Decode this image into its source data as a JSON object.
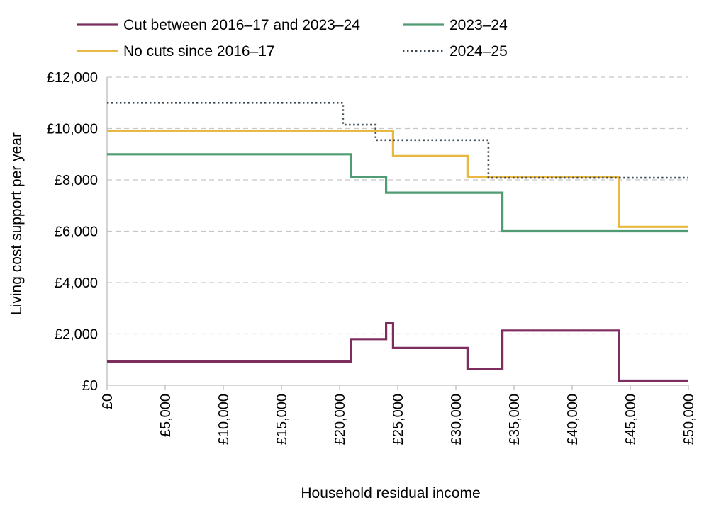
{
  "chart_data": {
    "type": "line",
    "step": true,
    "title": "",
    "xlabel": "Household residual income",
    "ylabel": "Living cost support per year",
    "xlim": [
      0,
      50000
    ],
    "ylim": [
      0,
      12000
    ],
    "x_ticks": [
      0,
      5000,
      10000,
      15000,
      20000,
      25000,
      30000,
      35000,
      40000,
      45000,
      50000
    ],
    "x_tick_labels": [
      "£0",
      "£5,000",
      "£10,000",
      "£15,000",
      "£20,000",
      "£25,000",
      "£30,000",
      "£35,000",
      "£40,000",
      "£45,000",
      "£50,000"
    ],
    "y_ticks": [
      0,
      2000,
      4000,
      6000,
      8000,
      10000,
      12000
    ],
    "y_tick_labels": [
      "£0",
      "£2,000",
      "£4,000",
      "£6,000",
      "£8,000",
      "£10,000",
      "£12,000"
    ],
    "grid": "horizontal dashed",
    "legend_position": "top",
    "series": [
      {
        "name": "Cut between 2016–17 and 2023–24",
        "color": "#7d2e5f",
        "style": "solid",
        "x": [
          0,
          21000,
          21000,
          24000,
          24000,
          24600,
          24600,
          31000,
          31000,
          34000,
          34000,
          44000,
          44000,
          50000
        ],
        "y": [
          920,
          920,
          1800,
          1800,
          2420,
          2420,
          1450,
          1450,
          630,
          630,
          2130,
          2130,
          180,
          180
        ]
      },
      {
        "name": "No cuts since 2016–17",
        "color": "#e8b840",
        "style": "solid",
        "x": [
          0,
          24600,
          24600,
          31000,
          31000,
          44000,
          44000,
          50000
        ],
        "y": [
          9900,
          9900,
          8930,
          8930,
          8120,
          8120,
          6170,
          6170
        ]
      },
      {
        "name": "2023–24",
        "color": "#4f9b72",
        "style": "solid",
        "x": [
          0,
          21000,
          21000,
          24000,
          24000,
          34000,
          34000,
          50000
        ],
        "y": [
          9000,
          9000,
          8120,
          8120,
          7500,
          7500,
          6000,
          6000
        ]
      },
      {
        "name": "2024–25",
        "color": "#3b4a54",
        "style": "dotted",
        "x": [
          0,
          20300,
          20300,
          23100,
          23100,
          32800,
          32800,
          50000
        ],
        "y": [
          11000,
          11000,
          10150,
          10150,
          9550,
          9550,
          8080,
          8080
        ]
      }
    ],
    "legend": [
      {
        "label": "Cut between 2016–17 and 2023–24",
        "color": "#7d2e5f",
        "style": "solid"
      },
      {
        "label": "2023–24",
        "color": "#4f9b72",
        "style": "solid"
      },
      {
        "label": "No cuts since 2016–17",
        "color": "#e8b840",
        "style": "solid"
      },
      {
        "label": "2024–25",
        "color": "#3b4a54",
        "style": "dotted"
      }
    ]
  }
}
